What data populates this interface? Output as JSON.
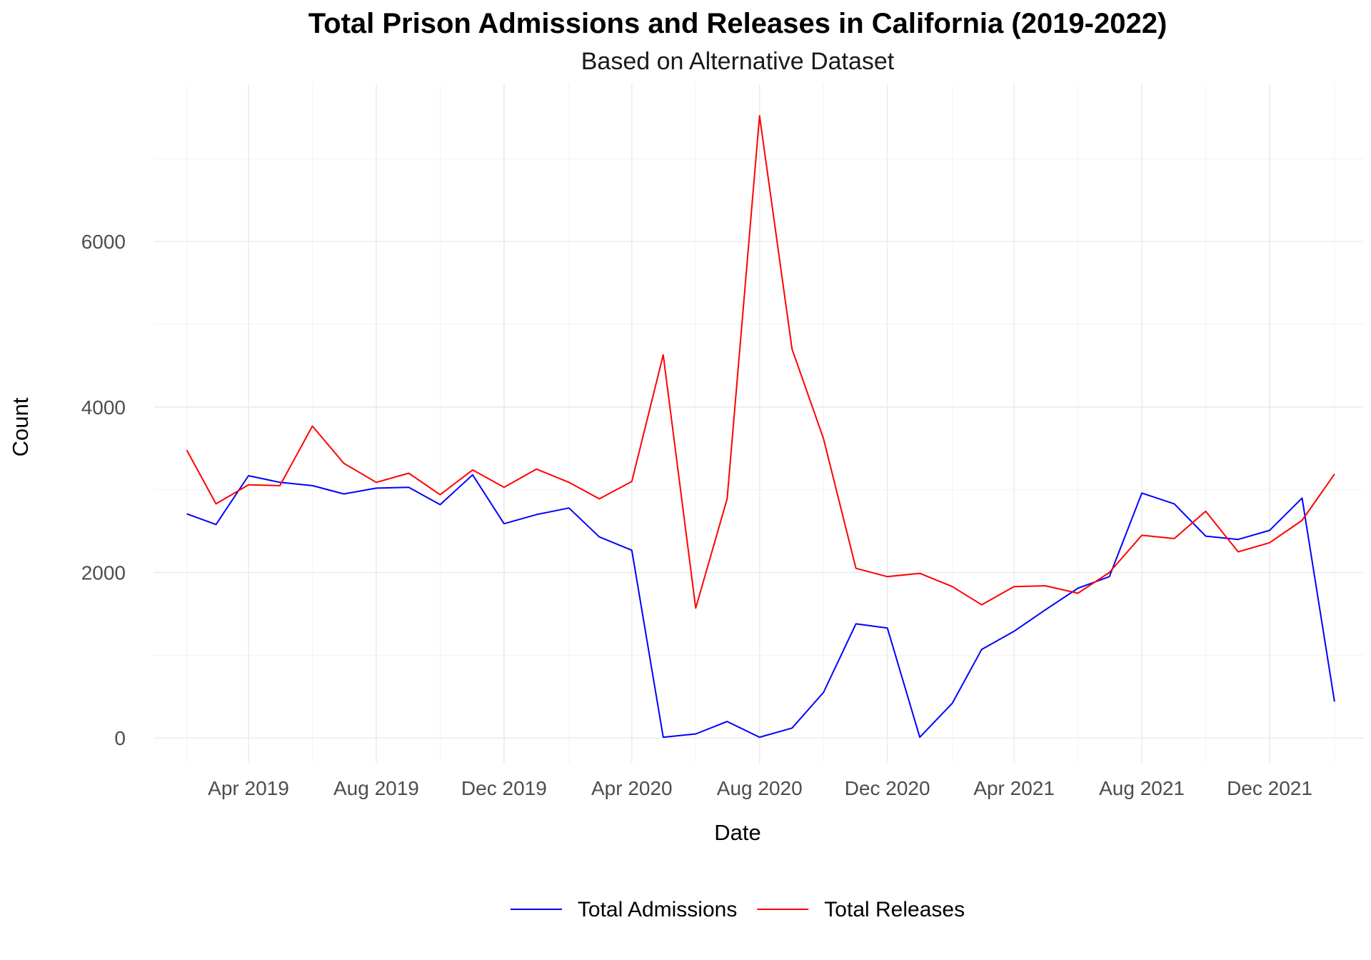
{
  "chart_data": {
    "type": "line",
    "title": "Total Prison Admissions and Releases in California (2019-2022)",
    "subtitle": "Based on Alternative Dataset",
    "xlabel": "Date",
    "ylabel": "Count",
    "x_ticks": [
      {
        "date": "2019-04-01",
        "label": "Apr 2019"
      },
      {
        "date": "2019-08-01",
        "label": "Aug 2019"
      },
      {
        "date": "2019-12-01",
        "label": "Dec 2019"
      },
      {
        "date": "2020-04-01",
        "label": "Apr 2020"
      },
      {
        "date": "2020-08-01",
        "label": "Aug 2020"
      },
      {
        "date": "2020-12-01",
        "label": "Dec 2020"
      },
      {
        "date": "2021-04-01",
        "label": "Apr 2021"
      },
      {
        "date": "2021-08-01",
        "label": "Aug 2021"
      },
      {
        "date": "2021-12-01",
        "label": "Dec 2021"
      }
    ],
    "y_ticks": [
      0,
      2000,
      4000,
      6000
    ],
    "xlim": [
      "2019-01-01",
      "2022-03-01"
    ],
    "ylim": [
      -300,
      7900
    ],
    "grid": true,
    "legend_position": "bottom",
    "x": [
      "2019-02-01",
      "2019-03-01",
      "2019-04-01",
      "2019-05-01",
      "2019-06-01",
      "2019-07-01",
      "2019-08-01",
      "2019-09-01",
      "2019-10-01",
      "2019-11-01",
      "2019-12-01",
      "2020-01-01",
      "2020-02-01",
      "2020-03-01",
      "2020-04-01",
      "2020-05-01",
      "2020-06-01",
      "2020-07-01",
      "2020-08-01",
      "2020-09-01",
      "2020-10-01",
      "2020-11-01",
      "2020-12-01",
      "2021-01-01",
      "2021-02-01",
      "2021-03-01",
      "2021-04-01",
      "2021-05-01",
      "2021-06-01",
      "2021-07-01",
      "2021-08-01",
      "2021-09-01",
      "2021-10-01",
      "2021-11-01",
      "2021-12-01",
      "2022-01-01",
      "2022-02-01"
    ],
    "series": [
      {
        "name": "Total Admissions",
        "color": "#0000ff",
        "values": [
          2710,
          2580,
          3170,
          3090,
          3050,
          2950,
          3020,
          3030,
          2820,
          3180,
          2590,
          2700,
          2780,
          2430,
          2270,
          10,
          50,
          200,
          10,
          120,
          550,
          1380,
          1330,
          10,
          420,
          1070,
          1290,
          1550,
          1810,
          1950,
          2960,
          2830,
          2440,
          2400,
          2510,
          2900,
          440
        ]
      },
      {
        "name": "Total Releases",
        "color": "#ff0000",
        "values": [
          3480,
          2830,
          3060,
          3050,
          3770,
          3320,
          3090,
          3200,
          2940,
          3240,
          3030,
          3250,
          3090,
          2890,
          3100,
          4630,
          1570,
          2890,
          7520,
          4700,
          3620,
          2050,
          1950,
          1990,
          1830,
          1610,
          1830,
          1840,
          1750,
          2000,
          2450,
          2410,
          2740,
          2250,
          2360,
          2630,
          3190
        ]
      }
    ]
  }
}
